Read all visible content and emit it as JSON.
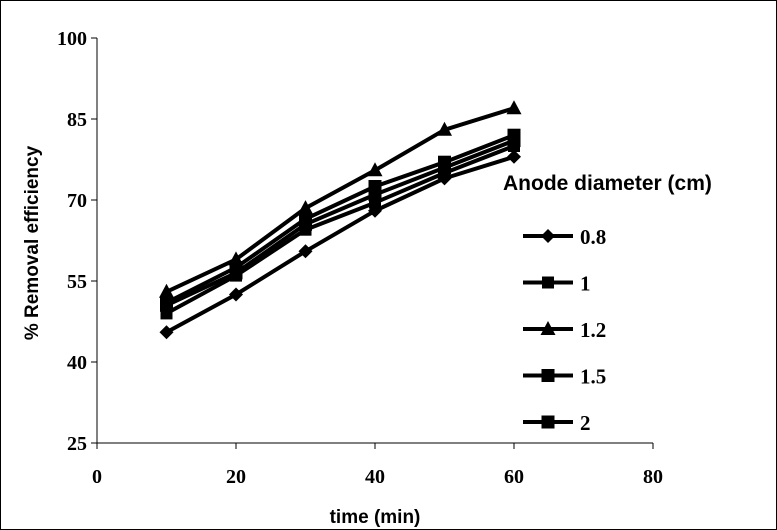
{
  "chart_data": {
    "type": "line",
    "xlabel": "time (min)",
    "ylabel": "% Removal efficiency",
    "xlim": [
      0,
      80
    ],
    "ylim": [
      25,
      100
    ],
    "xticks": [
      "0",
      "20",
      "40",
      "60",
      "80"
    ],
    "yticks": [
      "25",
      "40",
      "55",
      "70",
      "85",
      "100"
    ],
    "grid": false,
    "legend_title": "Anode diameter (cm)",
    "legend_position": "right",
    "x": [
      10,
      20,
      30,
      40,
      50,
      60
    ],
    "series": [
      {
        "name": "0.8",
        "marker": "diamond",
        "values": [
          45.5,
          52.5,
          60.5,
          68,
          74,
          78
        ]
      },
      {
        "name": "1",
        "marker": "square",
        "values": [
          49,
          56,
          64.5,
          69.5,
          75,
          80
        ]
      },
      {
        "name": "1.2",
        "marker": "triangle",
        "values": [
          53,
          59,
          68.5,
          75.5,
          83,
          87
        ]
      },
      {
        "name": "1.5",
        "marker": "dash-square",
        "values": [
          51,
          57.5,
          66.5,
          72.5,
          77,
          82
        ]
      },
      {
        "name": "2",
        "marker": "dash-square",
        "values": [
          50.5,
          56.5,
          65.5,
          71,
          76,
          81
        ]
      }
    ]
  }
}
